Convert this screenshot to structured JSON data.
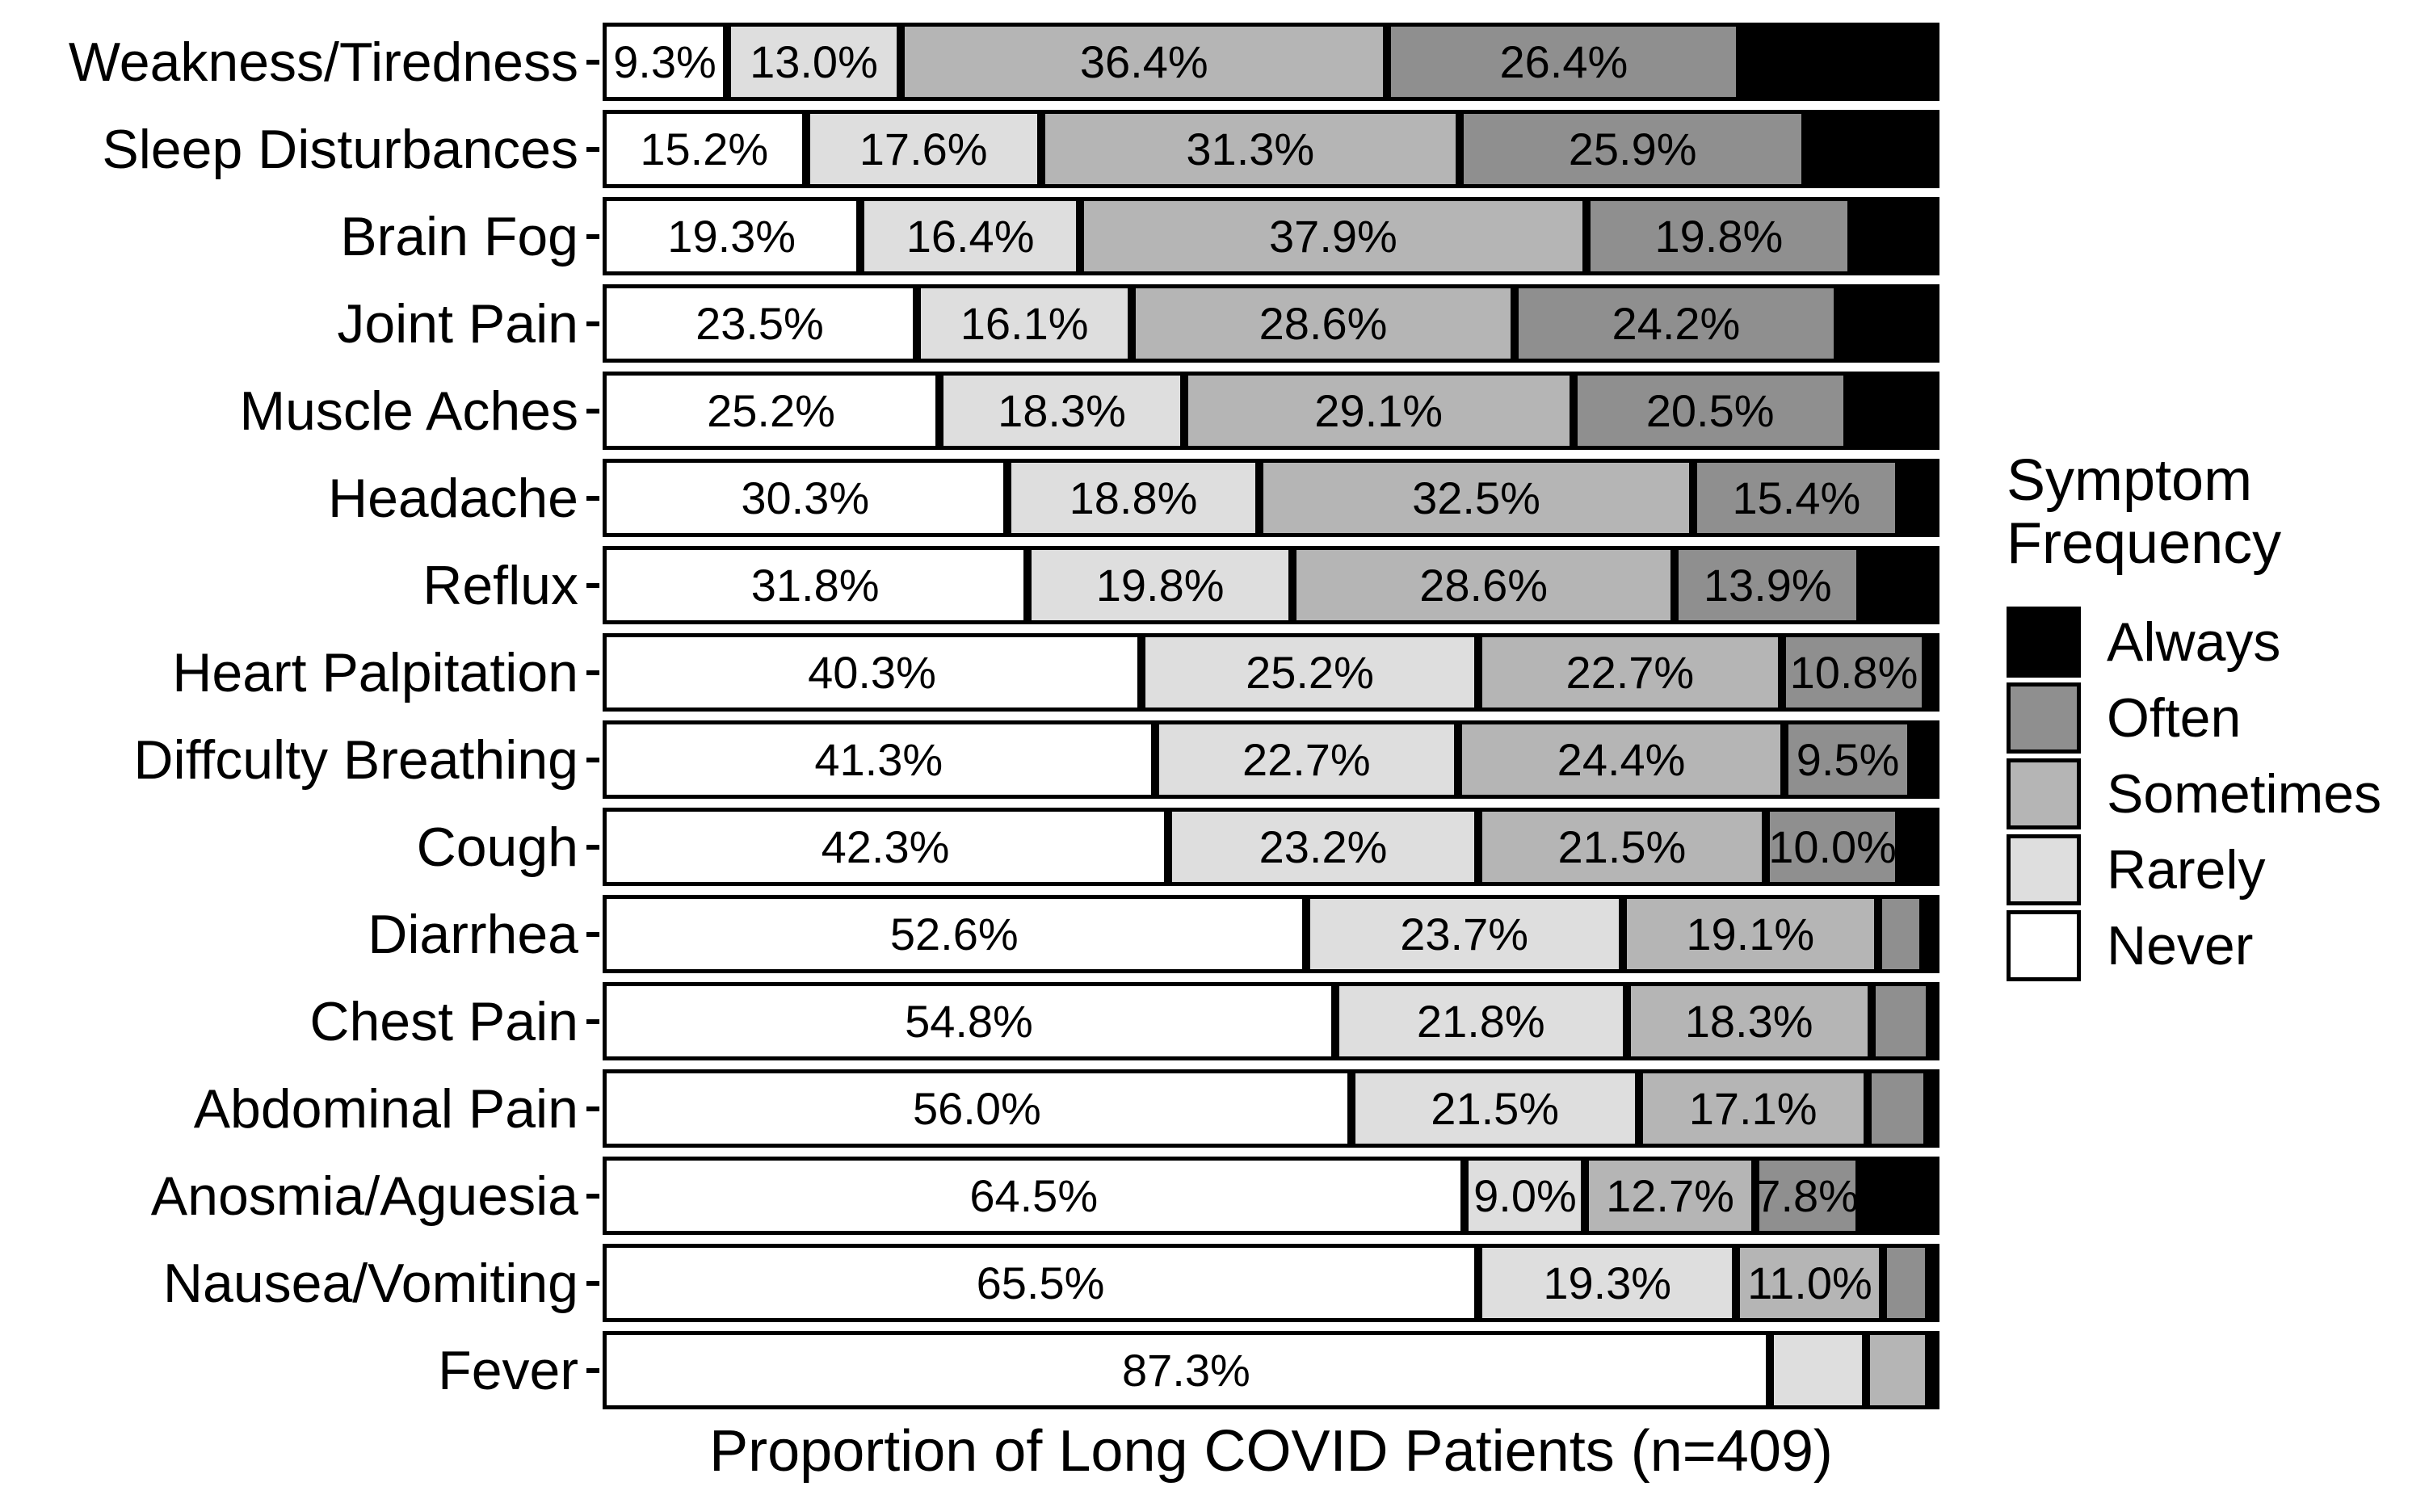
{
  "figure": {
    "xlabel": "Proportion of Long COVID Patients (n=409)",
    "legend": {
      "title": "Symptom Frequency",
      "entries": [
        {
          "label": "Always",
          "color": "#000000"
        },
        {
          "label": "Often",
          "color": "#8f8f8f"
        },
        {
          "label": "Sometimes",
          "color": "#b5b5b5"
        },
        {
          "label": "Rarely",
          "color": "#dedede"
        },
        {
          "label": "Never",
          "color": "#ffffff"
        }
      ]
    }
  },
  "chart_data": {
    "type": "bar",
    "orientation": "horizontal_stacked",
    "title": "",
    "xlabel": "Proportion of Long COVID Patients (n=409)",
    "ylabel": "",
    "xlim": [
      0,
      100
    ],
    "grid": false,
    "legend_title": "Symptom Frequency",
    "legend_position": "right",
    "legend_order": [
      "Always",
      "Often",
      "Sometimes",
      "Rarely",
      "Never"
    ],
    "stack_order": [
      "Never",
      "Rarely",
      "Sometimes",
      "Often",
      "Always"
    ],
    "colors": {
      "Never": "#ffffff",
      "Rarely": "#dedede",
      "Sometimes": "#b5b5b5",
      "Often": "#8f8f8f",
      "Always": "#000000"
    },
    "categories": [
      "Weakness/Tiredness",
      "Sleep Disturbances",
      "Brain Fog",
      "Joint Pain",
      "Muscle Aches",
      "Headache",
      "Reflux",
      "Heart Palpitation",
      "Diffculty Breathing",
      "Cough",
      "Diarrhea",
      "Chest Pain",
      "Abdominal Pain",
      "Anosmia/Aguesia",
      "Nausea/Vomiting",
      "Fever"
    ],
    "rows": [
      {
        "symptom": "Weakness/Tiredness",
        "segments": [
          {
            "freq": "Never",
            "value": 9.3,
            "label": "9.3%"
          },
          {
            "freq": "Rarely",
            "value": 13.0,
            "label": "13.0%"
          },
          {
            "freq": "Sometimes",
            "value": 36.4,
            "label": "36.4%"
          },
          {
            "freq": "Often",
            "value": 26.4,
            "label": "26.4%"
          },
          {
            "freq": "Always",
            "value": 14.9,
            "label": ""
          }
        ]
      },
      {
        "symptom": "Sleep Disturbances",
        "segments": [
          {
            "freq": "Never",
            "value": 15.2,
            "label": "15.2%"
          },
          {
            "freq": "Rarely",
            "value": 17.6,
            "label": "17.6%"
          },
          {
            "freq": "Sometimes",
            "value": 31.3,
            "label": "31.3%"
          },
          {
            "freq": "Often",
            "value": 25.9,
            "label": "25.9%"
          },
          {
            "freq": "Always",
            "value": 10.0,
            "label": ""
          }
        ]
      },
      {
        "symptom": "Brain Fog",
        "segments": [
          {
            "freq": "Never",
            "value": 19.3,
            "label": "19.3%"
          },
          {
            "freq": "Rarely",
            "value": 16.4,
            "label": "16.4%"
          },
          {
            "freq": "Sometimes",
            "value": 37.9,
            "label": "37.9%"
          },
          {
            "freq": "Often",
            "value": 19.8,
            "label": "19.8%"
          },
          {
            "freq": "Always",
            "value": 6.6,
            "label": ""
          }
        ]
      },
      {
        "symptom": "Joint Pain",
        "segments": [
          {
            "freq": "Never",
            "value": 23.5,
            "label": "23.5%"
          },
          {
            "freq": "Rarely",
            "value": 16.1,
            "label": "16.1%"
          },
          {
            "freq": "Sometimes",
            "value": 28.6,
            "label": "28.6%"
          },
          {
            "freq": "Often",
            "value": 24.2,
            "label": "24.2%"
          },
          {
            "freq": "Always",
            "value": 7.6,
            "label": ""
          }
        ]
      },
      {
        "symptom": "Muscle Aches",
        "segments": [
          {
            "freq": "Never",
            "value": 25.2,
            "label": "25.2%"
          },
          {
            "freq": "Rarely",
            "value": 18.3,
            "label": "18.3%"
          },
          {
            "freq": "Sometimes",
            "value": 29.1,
            "label": "29.1%"
          },
          {
            "freq": "Often",
            "value": 20.5,
            "label": "20.5%"
          },
          {
            "freq": "Always",
            "value": 6.9,
            "label": ""
          }
        ]
      },
      {
        "symptom": "Headache",
        "segments": [
          {
            "freq": "Never",
            "value": 30.3,
            "label": "30.3%"
          },
          {
            "freq": "Rarely",
            "value": 18.8,
            "label": "18.8%"
          },
          {
            "freq": "Sometimes",
            "value": 32.5,
            "label": "32.5%"
          },
          {
            "freq": "Often",
            "value": 15.4,
            "label": "15.4%"
          },
          {
            "freq": "Always",
            "value": 3.0,
            "label": ""
          }
        ]
      },
      {
        "symptom": "Reflux",
        "segments": [
          {
            "freq": "Never",
            "value": 31.8,
            "label": "31.8%"
          },
          {
            "freq": "Rarely",
            "value": 19.8,
            "label": "19.8%"
          },
          {
            "freq": "Sometimes",
            "value": 28.6,
            "label": "28.6%"
          },
          {
            "freq": "Often",
            "value": 13.9,
            "label": "13.9%"
          },
          {
            "freq": "Always",
            "value": 5.9,
            "label": ""
          }
        ]
      },
      {
        "symptom": "Heart Palpitation",
        "segments": [
          {
            "freq": "Never",
            "value": 40.3,
            "label": "40.3%"
          },
          {
            "freq": "Rarely",
            "value": 25.2,
            "label": "25.2%"
          },
          {
            "freq": "Sometimes",
            "value": 22.7,
            "label": "22.7%"
          },
          {
            "freq": "Often",
            "value": 10.8,
            "label": "10.8%"
          },
          {
            "freq": "Always",
            "value": 1.0,
            "label": ""
          }
        ]
      },
      {
        "symptom": "Diffculty Breathing",
        "segments": [
          {
            "freq": "Never",
            "value": 41.3,
            "label": "41.3%"
          },
          {
            "freq": "Rarely",
            "value": 22.7,
            "label": "22.7%"
          },
          {
            "freq": "Sometimes",
            "value": 24.4,
            "label": "24.4%"
          },
          {
            "freq": "Often",
            "value": 9.5,
            "label": "9.5%"
          },
          {
            "freq": "Always",
            "value": 2.1,
            "label": ""
          }
        ]
      },
      {
        "symptom": "Cough",
        "segments": [
          {
            "freq": "Never",
            "value": 42.3,
            "label": "42.3%"
          },
          {
            "freq": "Rarely",
            "value": 23.2,
            "label": "23.2%"
          },
          {
            "freq": "Sometimes",
            "value": 21.5,
            "label": "21.5%"
          },
          {
            "freq": "Often",
            "value": 10.0,
            "label": "10.0%"
          },
          {
            "freq": "Always",
            "value": 3.0,
            "label": ""
          }
        ]
      },
      {
        "symptom": "Diarrhea",
        "segments": [
          {
            "freq": "Never",
            "value": 52.6,
            "label": "52.6%"
          },
          {
            "freq": "Rarely",
            "value": 23.7,
            "label": "23.7%"
          },
          {
            "freq": "Sometimes",
            "value": 19.1,
            "label": "19.1%"
          },
          {
            "freq": "Often",
            "value": 3.4,
            "label": ""
          },
          {
            "freq": "Always",
            "value": 1.2,
            "label": ""
          }
        ]
      },
      {
        "symptom": "Chest Pain",
        "segments": [
          {
            "freq": "Never",
            "value": 54.8,
            "label": "54.8%"
          },
          {
            "freq": "Rarely",
            "value": 21.8,
            "label": "21.8%"
          },
          {
            "freq": "Sometimes",
            "value": 18.3,
            "label": "18.3%"
          },
          {
            "freq": "Often",
            "value": 4.4,
            "label": ""
          },
          {
            "freq": "Always",
            "value": 0.7,
            "label": ""
          }
        ]
      },
      {
        "symptom": "Abdominal Pain",
        "segments": [
          {
            "freq": "Never",
            "value": 56.0,
            "label": "56.0%"
          },
          {
            "freq": "Rarely",
            "value": 21.5,
            "label": "21.5%"
          },
          {
            "freq": "Sometimes",
            "value": 17.1,
            "label": "17.1%"
          },
          {
            "freq": "Often",
            "value": 4.5,
            "label": ""
          },
          {
            "freq": "Always",
            "value": 0.9,
            "label": ""
          }
        ]
      },
      {
        "symptom": "Anosmia/Aguesia",
        "segments": [
          {
            "freq": "Never",
            "value": 64.5,
            "label": "64.5%"
          },
          {
            "freq": "Rarely",
            "value": 9.0,
            "label": "9.0%"
          },
          {
            "freq": "Sometimes",
            "value": 12.7,
            "label": "12.7%"
          },
          {
            "freq": "Often",
            "value": 7.8,
            "label": "7.8%"
          },
          {
            "freq": "Always",
            "value": 6.0,
            "label": ""
          }
        ]
      },
      {
        "symptom": "Nausea/Vomiting",
        "segments": [
          {
            "freq": "Never",
            "value": 65.5,
            "label": "65.5%"
          },
          {
            "freq": "Rarely",
            "value": 19.3,
            "label": "19.3%"
          },
          {
            "freq": "Sometimes",
            "value": 11.0,
            "label": "11.0%"
          },
          {
            "freq": "Often",
            "value": 3.4,
            "label": ""
          },
          {
            "freq": "Always",
            "value": 0.8,
            "label": ""
          }
        ]
      },
      {
        "symptom": "Fever",
        "segments": [
          {
            "freq": "Never",
            "value": 87.3,
            "label": "87.3%"
          },
          {
            "freq": "Rarely",
            "value": 7.2,
            "label": ""
          },
          {
            "freq": "Sometimes",
            "value": 4.7,
            "label": ""
          },
          {
            "freq": "Often",
            "value": 0.0,
            "label": ""
          },
          {
            "freq": "Always",
            "value": 0.8,
            "label": ""
          }
        ]
      }
    ]
  }
}
